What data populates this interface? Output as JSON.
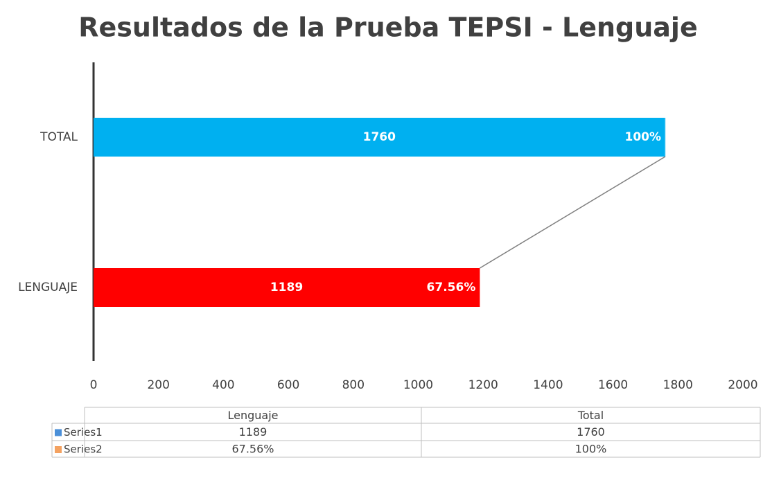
{
  "chart_data": {
    "type": "bar",
    "orientation": "horizontal",
    "stacked": true,
    "title": "Resultados de la Prueba TEPSI - Lenguaje",
    "categories": [
      "LENGUAJE",
      "TOTAL"
    ],
    "table_headers": [
      "Lenguaje",
      "Total"
    ],
    "series": [
      {
        "name": "Series1",
        "color": "#4a8fd8",
        "point_colors": [
          "#ff0000",
          "#00b0f0"
        ],
        "values": [
          1189,
          1760
        ]
      },
      {
        "name": "Series2",
        "color": "#f4a261",
        "point_colors": [
          "#ff8080",
          "#80d8f8"
        ],
        "values": [
          0.6756,
          1
        ],
        "value_labels": [
          "67.56%",
          "100%"
        ]
      }
    ],
    "xlim": [
      0,
      2000
    ],
    "xticks": [
      0,
      200,
      400,
      600,
      800,
      1000,
      1200,
      1400,
      1600,
      1800,
      2000
    ],
    "grid": false
  }
}
